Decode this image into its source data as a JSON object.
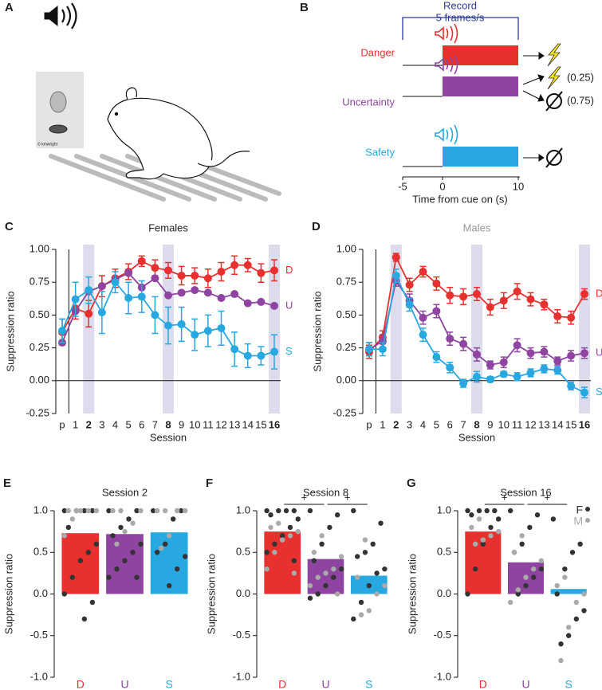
{
  "diagram": {
    "panels": [
      "A",
      "B"
    ],
    "credit": "© kmwright",
    "record": [
      "Record",
      "5 frames/s"
    ],
    "cues": [
      "Danger",
      "Uncertainty",
      "Safety"
    ],
    "probabilities": [
      "(0.25)",
      "(0.75)"
    ],
    "time_ticks": [
      "-5",
      "0",
      "10"
    ],
    "time_label": "Time from cue on (s)"
  },
  "chart_data": [
    {
      "type": "line",
      "panel": "C",
      "title": "Females",
      "title_color": "#222",
      "xlabel": "Session",
      "ylabel": "Suppression ratio",
      "categories": [
        "p",
        "1",
        "2",
        "3",
        "4",
        "5",
        "6",
        "7",
        "8",
        "9",
        "10",
        "11",
        "12",
        "13",
        "14",
        "15",
        "16"
      ],
      "highlight": [
        2,
        8,
        16
      ],
      "ylim": [
        -0.25,
        1.0
      ],
      "yticks": [
        {
          "value": -0.25,
          "label": "-0.25"
        },
        {
          "value": 0,
          "label": "0.00"
        },
        {
          "value": 0.25,
          "label": "0.25"
        },
        {
          "value": 0.5,
          "label": "0.50"
        },
        {
          "value": 0.75,
          "label": "0.75"
        },
        {
          "value": 1,
          "label": "1.00"
        }
      ],
      "series": [
        {
          "name": "D",
          "color": "#e8302e",
          "values": [
            0.37,
            0.55,
            0.51,
            0.72,
            0.78,
            0.83,
            0.91,
            0.86,
            0.84,
            0.8,
            0.8,
            0.78,
            0.83,
            0.88,
            0.88,
            0.82,
            0.84
          ],
          "errors": [
            0.1,
            0.08,
            0.1,
            0.08,
            0.07,
            0.06,
            0.04,
            0.06,
            0.06,
            0.07,
            0.06,
            0.07,
            0.07,
            0.07,
            0.05,
            0.07,
            0.08
          ]
        },
        {
          "name": "U",
          "color": "#8e44a0",
          "values": [
            0.29,
            0.53,
            0.68,
            0.72,
            0.77,
            0.82,
            0.71,
            0.78,
            0.65,
            0.67,
            0.69,
            0.67,
            0.63,
            0.66,
            0.59,
            0.6,
            0.57
          ]
        },
        {
          "name": "S",
          "color": "#27a8e0",
          "values": [
            0.38,
            0.62,
            0.69,
            0.52,
            0.75,
            0.63,
            0.64,
            0.5,
            0.42,
            0.43,
            0.35,
            0.38,
            0.4,
            0.24,
            0.19,
            0.19,
            0.22
          ],
          "errors": [
            0.09,
            0.13,
            0.1,
            0.16,
            0.08,
            0.12,
            0.12,
            0.14,
            0.14,
            0.13,
            0.12,
            0.12,
            0.13,
            0.13,
            0.09,
            0.07,
            0.13
          ]
        }
      ]
    },
    {
      "type": "line",
      "panel": "D",
      "title": "Males",
      "title_color": "#999",
      "xlabel": "Session",
      "ylabel": "Suppression ratio",
      "categories": [
        "p",
        "1",
        "2",
        "3",
        "4",
        "5",
        "6",
        "7",
        "8",
        "9",
        "10",
        "11",
        "12",
        "13",
        "14",
        "15",
        "16"
      ],
      "highlight": [
        2,
        8,
        16
      ],
      "ylim": [
        -0.25,
        1.0
      ],
      "yticks": [
        {
          "value": -0.25,
          "label": "-0.25"
        },
        {
          "value": 0,
          "label": "0.00"
        },
        {
          "value": 0.25,
          "label": "0.25"
        },
        {
          "value": 0.5,
          "label": "0.50"
        },
        {
          "value": 0.75,
          "label": "0.75"
        },
        {
          "value": 1,
          "label": "1.00"
        }
      ],
      "series": [
        {
          "name": "D",
          "color": "#e8302e",
          "values": [
            0.22,
            0.33,
            0.94,
            0.73,
            0.83,
            0.74,
            0.65,
            0.64,
            0.66,
            0.56,
            0.61,
            0.68,
            0.62,
            0.58,
            0.49,
            0.48,
            0.66
          ],
          "errors": [
            0.05,
            0.05,
            0.03,
            0.05,
            0.04,
            0.05,
            0.06,
            0.06,
            0.05,
            0.06,
            0.06,
            0.06,
            0.05,
            0.04,
            0.05,
            0.05,
            0.04
          ]
        },
        {
          "name": "U",
          "color": "#8e44a0",
          "values": [
            0.24,
            0.3,
            0.76,
            0.61,
            0.48,
            0.53,
            0.32,
            0.28,
            0.2,
            0.12,
            0.14,
            0.27,
            0.21,
            0.22,
            0.15,
            0.19,
            0.21
          ],
          "errors": [
            0.05,
            0.05,
            0.04,
            0.05,
            0.05,
            0.05,
            0.05,
            0.05,
            0.05,
            0.03,
            0.04,
            0.05,
            0.04,
            0.04,
            0.03,
            0.04,
            0.04
          ]
        },
        {
          "name": "S",
          "color": "#27a8e0",
          "values": [
            0.24,
            0.24,
            0.8,
            0.58,
            0.35,
            0.18,
            0.1,
            -0.02,
            0.03,
            0.01,
            0.05,
            0.03,
            0.06,
            0.09,
            0.08,
            -0.04,
            -0.09
          ],
          "errors": [
            0.05,
            0.05,
            0.05,
            0.05,
            0.05,
            0.04,
            0.04,
            0.03,
            0.04,
            0.02,
            0.02,
            0.03,
            0.03,
            0.03,
            0.03,
            0.03,
            0.04
          ]
        }
      ]
    },
    {
      "type": "bar",
      "panel": "E",
      "title": "Session 2",
      "ylabel": "Suppression ratio",
      "categories": [
        "D",
        "U",
        "S"
      ],
      "colors": [
        "#e8302e",
        "#8e44a0",
        "#27a8e0"
      ],
      "values": [
        0.73,
        0.72,
        0.74
      ],
      "ylim": [
        -1,
        1
      ],
      "yticks": [
        {
          "value": -1,
          "label": "-1.0"
        },
        {
          "value": -0.5,
          "label": "-0.5"
        },
        {
          "value": 0,
          "label": "0.0"
        },
        {
          "value": 0.5,
          "label": "0.5"
        },
        {
          "value": 1,
          "label": "1.0"
        }
      ],
      "points": [
        {
          "color": "#333",
          "values": [
            [
              1,
              1,
              1,
              1,
              0.8,
              0.6,
              0.5,
              0.4,
              0.2,
              0,
              -0.1,
              -0.3
            ],
            [
              1,
              1,
              0.9,
              0.8,
              0.7,
              0.6,
              0.5,
              0.4,
              0.3,
              0.2,
              0.2
            ],
            [
              1,
              1,
              0.9,
              0.6,
              0.5,
              0.45,
              0.3,
              0.1
            ]
          ]
        },
        {
          "color": "#aaa",
          "values": [
            [
              1,
              1,
              1,
              1,
              1,
              0.9,
              0.7
            ],
            [
              1,
              1,
              1,
              0.85,
              0.75,
              0.6
            ],
            [
              1,
              1,
              1,
              1,
              0.7,
              0.55
            ]
          ]
        }
      ]
    },
    {
      "type": "bar",
      "panel": "F",
      "title": "Session 8",
      "ylabel": "Suppression ratio",
      "categories": [
        "D",
        "U",
        "S"
      ],
      "colors": [
        "#e8302e",
        "#8e44a0",
        "#27a8e0"
      ],
      "values": [
        0.75,
        0.42,
        0.22
      ],
      "ylim": [
        -1,
        1
      ],
      "yticks": [
        {
          "value": -1,
          "label": "-1.0"
        },
        {
          "value": -0.5,
          "label": "-0.5"
        },
        {
          "value": 0,
          "label": "0.0"
        },
        {
          "value": 0.5,
          "label": "0.5"
        },
        {
          "value": 1,
          "label": "1.0"
        }
      ],
      "points": [
        {
          "color": "#333",
          "values": [
            [
              1,
              1,
              1,
              1,
              0.95,
              0.9,
              0.8,
              0.7,
              0.6,
              0.5,
              0.4
            ],
            [
              1,
              0.95,
              0.8,
              0.6,
              0.4,
              0.3,
              0.2,
              0.1,
              0,
              -0.05
            ],
            [
              1,
              0.85,
              0.6,
              0.5,
              0.45,
              0.3,
              0.25,
              0.1,
              -0.1,
              -0.3
            ]
          ]
        },
        {
          "color": "#aaa",
          "values": [
            [
              0.85,
              0.8,
              0.75,
              0.7,
              0.65,
              0.5,
              0.3,
              0.25
            ],
            [
              0.7,
              0.5,
              0.45,
              0.3,
              0.25,
              0.2,
              0.1,
              0
            ],
            [
              0.65,
              0.2,
              0.1,
              0,
              -0.2,
              -0.25
            ]
          ]
        }
      ],
      "annotations": [
        {
          "label": "+",
          "from": 0,
          "to": 1
        },
        {
          "label": "+",
          "from": 1,
          "to": 2
        }
      ]
    },
    {
      "type": "bar",
      "panel": "G",
      "title": "Session 16",
      "ylabel": "Suppression ratio",
      "categories": [
        "D",
        "U",
        "S"
      ],
      "colors": [
        "#e8302e",
        "#8e44a0",
        "#27a8e0"
      ],
      "values": [
        0.75,
        0.38,
        0.06
      ],
      "ylim": [
        -1,
        1
      ],
      "yticks": [
        {
          "value": -1,
          "label": "-1.0"
        },
        {
          "value": -0.5,
          "label": "-0.5"
        },
        {
          "value": 0,
          "label": "0.0"
        },
        {
          "value": 0.5,
          "label": "0.5"
        },
        {
          "value": 1,
          "label": "1.0"
        }
      ],
      "points": [
        {
          "name": "F",
          "color": "#333",
          "values": [
            [
              1,
              1,
              1,
              1,
              0.95,
              0.9,
              0.8,
              0.6,
              0.3,
              0
            ],
            [
              1,
              0.95,
              0.8,
              0.6,
              0.5,
              0.3,
              0.2,
              0.1,
              0
            ],
            [
              0.9,
              0.6,
              0.5,
              0.3,
              0,
              -0.2,
              -0.3,
              -0.5,
              -0.6
            ]
          ]
        },
        {
          "name": "M",
          "color": "#aaa",
          "values": [
            [
              0.9,
              0.8,
              0.75,
              0.7,
              0.65,
              0.6
            ],
            [
              0.7,
              0.5,
              0.4,
              0.3,
              0.2,
              0.05,
              -0.1
            ],
            [
              0.2,
              0.1,
              0,
              -0.1,
              -0.4,
              -0.8
            ]
          ]
        }
      ],
      "legend": "upper right",
      "annotations": [
        {
          "label": "+",
          "from": 0,
          "to": 1
        },
        {
          "label": "+",
          "from": 1,
          "to": 2
        }
      ]
    }
  ]
}
